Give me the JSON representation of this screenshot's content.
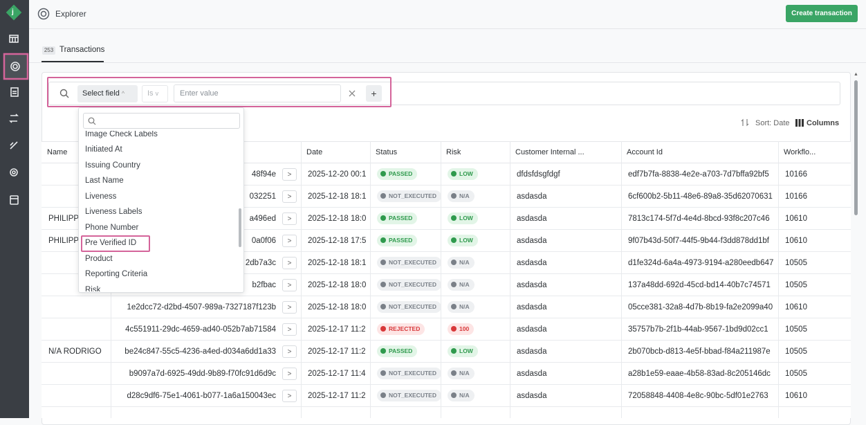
{
  "sidebar": {
    "logo": "j"
  },
  "header": {
    "title": "Explorer",
    "button": "Create transaction"
  },
  "tab": {
    "count": "253",
    "label": "Transactions"
  },
  "filter": {
    "field": "Select field",
    "operator": "Is",
    "placeholder": "Enter value"
  },
  "sort": {
    "label": "Sort: Date",
    "columns": "Columns"
  },
  "table": {
    "headers": [
      "Name",
      null,
      "Date",
      "Status",
      "Risk",
      "Customer Internal ...",
      "Account Id",
      "Workflo..."
    ],
    "rows": [
      [
        null,
        "48f94e",
        "2025-12-20 00:1",
        "PASSED",
        "LOW",
        "dfdsfdsgfdgf",
        "edf7b7fa-8838-4e2e-a703-7d7bffa92bf5",
        10166
      ],
      [
        null,
        "032251",
        "2025-12-18 18:1",
        "NOT_EXECUTED",
        "N/A",
        "asdasda",
        "6cf600b2-5b11-48e6-89a8-35d62070631",
        10166
      ],
      [
        "PHILIPP",
        "a496ed",
        "2025-12-18 18:0",
        "PASSED",
        "LOW",
        "asdasda",
        "7813c174-5f7d-4e4d-8bcd-93f8c207c46",
        10610
      ],
      [
        "PHILIPP",
        "0a0f06",
        "2025-12-18 17:5",
        "PASSED",
        "LOW",
        "asdasda",
        "9f07b43d-50f7-44f5-9b44-f3dd878dd1bf",
        10610
      ],
      [
        null,
        "2db7a3c",
        "2025-12-18 18:1",
        "NOT_EXECUTED",
        "N/A",
        "asdasda",
        "d1fe324d-6a4a-4973-9194-a280eedb647",
        10505
      ],
      [
        null,
        "b2fbac",
        "2025-12-18 18:0",
        "NOT_EXECUTED",
        "N/A",
        "asdasda",
        "137a48dd-692d-45cd-bd14-40b7c74571",
        10505
      ],
      [
        null,
        "1e2dcc72-d2bd-4507-989a-7327187f123b",
        "2025-12-18 18:0",
        "NOT_EXECUTED",
        "N/A",
        "asdasda",
        "05cce381-32a8-4d7b-8b19-fa2e2099a40",
        10610
      ],
      [
        null,
        "4c551911-29dc-4659-ad40-052b7ab71584",
        "2025-12-17 11:2",
        "REJECTED",
        "100",
        "asdasda",
        "35757b7b-2f1b-44ab-9567-1bd9d02cc1",
        10505
      ],
      [
        "N/A RODRIGO",
        "be24c847-55c5-4236-a4ed-d034a6dd1a33",
        "2025-12-17 11:2",
        "PASSED",
        "LOW",
        "asdasda",
        "2b070bcb-d813-4e5f-bbad-f84a211987e",
        10505
      ],
      [
        null,
        "b9097a7d-6925-49dd-9b89-f70fc91d6d9c",
        "2025-12-17 11:4",
        "NOT_EXECUTED",
        "N/A",
        "asdasda",
        "a28b1e59-eaae-4b58-83ad-8c205146dc",
        10505
      ],
      [
        null,
        "d28c9df6-75e1-4061-b077-1a6a150043ec",
        "2025-12-17 11:2",
        "NOT_EXECUTED",
        "N/A",
        "asdasda",
        "72058848-4408-4e8c-90bc-5df01e2763",
        10610
      ]
    ]
  },
  "dropdown": {
    "items": [
      "Image Check Labels",
      "Initiated At",
      "Issuing Country",
      "Last Name",
      "Liveness",
      "Liveness Labels",
      "Phone Number",
      "Pre Verified ID",
      "Product",
      "Reporting Criteria",
      "Risk"
    ]
  }
}
